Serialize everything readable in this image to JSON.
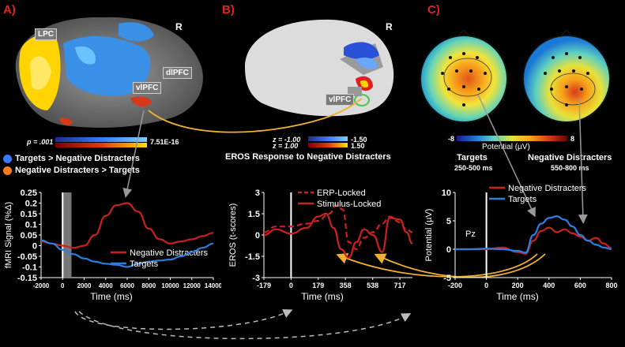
{
  "panels": {
    "a": {
      "label": "A)",
      "brain_tags": {
        "lpc": "LPC",
        "vlpfc": "vlPFC",
        "dlpfc": "dlPFC",
        "r": "R"
      },
      "colorbar": {
        "p": "p = .001",
        "max": "7.51E-16"
      },
      "legend": [
        {
          "name": "Targets > Negative Distracters",
          "color": "#3a78ff"
        },
        {
          "name": "Negative Distracters > Targets",
          "color": "#ff7a1a"
        }
      ]
    },
    "b": {
      "label": "B)",
      "r": "R",
      "vlpfc": "vlPFC",
      "colorbar": {
        "z1": "z = -1.00",
        "z2": "z = 1.00",
        "v1": "-1.50",
        "v2": "1.50"
      },
      "caption": "EROS Response to Negative Distracters"
    },
    "c": {
      "label": "C)",
      "colorbar": {
        "min": "-8",
        "max": "8",
        "title": "Potential (µV)"
      },
      "topo": [
        {
          "title": "Targets",
          "sub": "250-500 ms"
        },
        {
          "title": "Negative Distracters",
          "sub": "550-800 ms"
        }
      ]
    }
  },
  "chart_data": [
    {
      "type": "line",
      "ylabel": "fMRI Signal (%Δ)",
      "xlabel": "Time (ms)",
      "xlim": [
        -2000,
        14000
      ],
      "ylim": [
        -0.15,
        0.25
      ],
      "x_ticks": [
        "-2000",
        "0",
        "2000",
        "4000",
        "6000",
        "8000",
        "10000",
        "12000",
        "14000"
      ],
      "y_ticks": [
        "0.25",
        "0.2",
        "0.15",
        "0.1",
        "0.05",
        "0",
        "-0.05",
        "-0.1",
        "-0.15"
      ],
      "series": [
        {
          "name": "Negative Distracters",
          "color": "#cc1f1f",
          "x": [
            -2000,
            -1000,
            0,
            1000,
            2000,
            3000,
            4000,
            5000,
            6000,
            7000,
            8000,
            9000,
            10000,
            11000,
            12000,
            13000,
            14000
          ],
          "y": [
            0.02,
            0.01,
            0,
            -0.01,
            0.0,
            0.05,
            0.14,
            0.19,
            0.2,
            0.16,
            0.08,
            0.03,
            0.01,
            0.02,
            0.03,
            0.045,
            0.06
          ]
        },
        {
          "name": "Targets",
          "color": "#2a7fe0",
          "x": [
            -2000,
            -1000,
            0,
            1000,
            2000,
            3000,
            4000,
            5000,
            6000,
            7000,
            8000,
            9000,
            10000,
            11000,
            12000,
            13000,
            14000
          ],
          "y": [
            0.025,
            0.01,
            -0.02,
            -0.04,
            -0.06,
            -0.075,
            -0.085,
            -0.09,
            -0.1,
            -0.085,
            -0.075,
            -0.07,
            -0.065,
            -0.05,
            -0.03,
            -0.01,
            0.01
          ]
        }
      ]
    },
    {
      "type": "line",
      "ylabel": "EROS (t-scores)",
      "xlabel": "Time (ms)",
      "xlim": [
        -179,
        800
      ],
      "ylim": [
        -3,
        3
      ],
      "x_ticks": [
        "-179",
        "0",
        "179",
        "358",
        "538",
        "717"
      ],
      "y_ticks": [
        "3",
        "1.5",
        "0",
        "-1.5",
        "-3"
      ],
      "series": [
        {
          "name": "ERP-Locked",
          "color": "#cc1f1f",
          "dashed": true,
          "x": [
            -179,
            -100,
            0,
            100,
            179,
            250,
            300,
            340,
            380,
            430,
            480,
            540,
            600,
            650,
            717,
            760,
            800
          ],
          "y": [
            0.2,
            0.6,
            0.6,
            0.8,
            1.0,
            1.5,
            2.1,
            1.8,
            -0.5,
            -1.0,
            -0.2,
            0.2,
            0.8,
            1.3,
            0.9,
            0.4,
            0.2
          ]
        },
        {
          "name": "Stimulus-Locked",
          "color": "#cc1f1f",
          "x": [
            -179,
            -100,
            0,
            100,
            179,
            230,
            280,
            330,
            380,
            430,
            480,
            540,
            600,
            650,
            717,
            760,
            800
          ],
          "y": [
            0.0,
            0.4,
            0.1,
            0.5,
            1.3,
            1.5,
            0.5,
            -1.0,
            -1.6,
            -0.5,
            0.4,
            0.0,
            -1.2,
            1.2,
            1.1,
            0.2,
            -0.6
          ]
        }
      ]
    },
    {
      "type": "line",
      "ylabel": "Potential (µV)",
      "xlabel": "Time (ms)",
      "xlim": [
        -200,
        800
      ],
      "ylim": [
        -5,
        10
      ],
      "x_ticks": [
        "-200",
        "0",
        "200",
        "400",
        "600",
        "800"
      ],
      "y_ticks": [
        "10",
        "5",
        "0",
        "-5"
      ],
      "annotation": "Pz",
      "series": [
        {
          "name": "Negative Distracters",
          "color": "#cc1f1f",
          "x": [
            -200,
            -100,
            0,
            100,
            200,
            250,
            300,
            350,
            400,
            450,
            500,
            550,
            600,
            650,
            700,
            750,
            800
          ],
          "y": [
            0,
            0,
            0,
            0.3,
            -0.5,
            -0.8,
            1.5,
            3.2,
            3.8,
            3.0,
            3.5,
            2.8,
            2.2,
            1.5,
            2.0,
            1.0,
            0.2
          ]
        },
        {
          "name": "Targets",
          "color": "#2a7fe0",
          "x": [
            -200,
            -100,
            0,
            100,
            200,
            250,
            300,
            350,
            400,
            450,
            500,
            550,
            600,
            650,
            700,
            750,
            800
          ],
          "y": [
            0,
            0,
            0.1,
            0,
            -0.3,
            -0.6,
            2.5,
            4.5,
            5.5,
            5.8,
            5.2,
            4.0,
            2.5,
            1.5,
            0.8,
            0.3,
            0.0
          ]
        }
      ]
    }
  ]
}
